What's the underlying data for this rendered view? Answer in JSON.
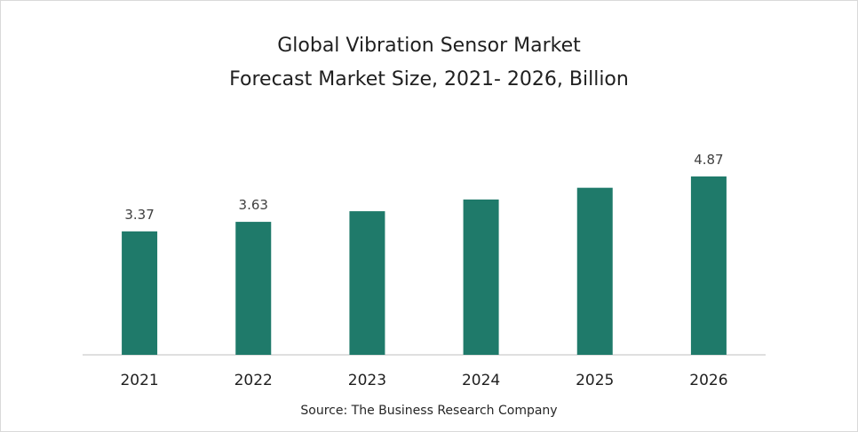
{
  "chart_data": {
    "type": "bar",
    "title_line1": "Global Vibration Sensor Market",
    "title_line2": "Forecast Market Size, 2021- 2026, Billion",
    "categories": [
      "2021",
      "2022",
      "2023",
      "2024",
      "2025",
      "2026"
    ],
    "values": [
      3.37,
      3.63,
      3.92,
      4.24,
      4.56,
      4.87
    ],
    "data_labels": [
      "3.37",
      "3.63",
      "",
      "",
      "",
      "4.87"
    ],
    "ylim": [
      0,
      5.3
    ],
    "bar_color": "#1f7a6a",
    "grid": false,
    "legend": "none"
  },
  "source": "Source: The Business Research Company"
}
